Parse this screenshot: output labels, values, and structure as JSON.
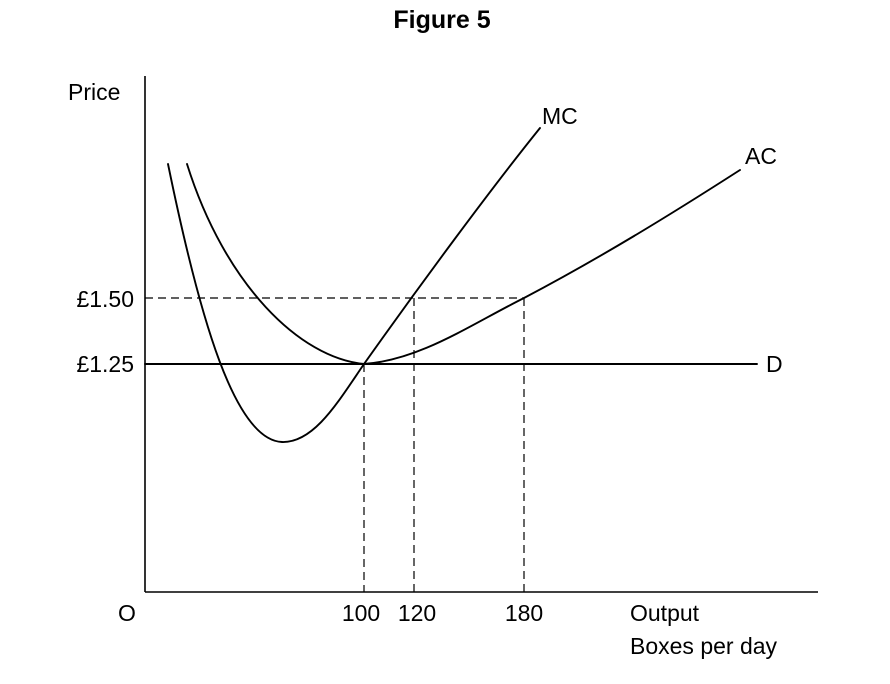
{
  "figure": {
    "title": "Figure 5"
  },
  "axes": {
    "y_label": "Price",
    "origin_label": "O",
    "x_label_line1": "Output",
    "x_label_line2": "Boxes per day"
  },
  "price_ticks": [
    {
      "label": "£1.50",
      "value": 1.5
    },
    {
      "label": "£1.25",
      "value": 1.25
    }
  ],
  "output_ticks": [
    {
      "label": "100",
      "value": 100
    },
    {
      "label": "120",
      "value": 120
    },
    {
      "label": "180",
      "value": 180
    }
  ],
  "curves": {
    "mc_label": "MC",
    "ac_label": "AC",
    "d_label": "D"
  },
  "key_points": [
    {
      "name": "MC = AC = D minimum",
      "output": 100,
      "price": 1.25
    },
    {
      "name": "MC at £1.50",
      "output": 120,
      "price": 1.5
    },
    {
      "name": "AC at £1.50",
      "output": 180,
      "price": 1.5
    }
  ]
}
